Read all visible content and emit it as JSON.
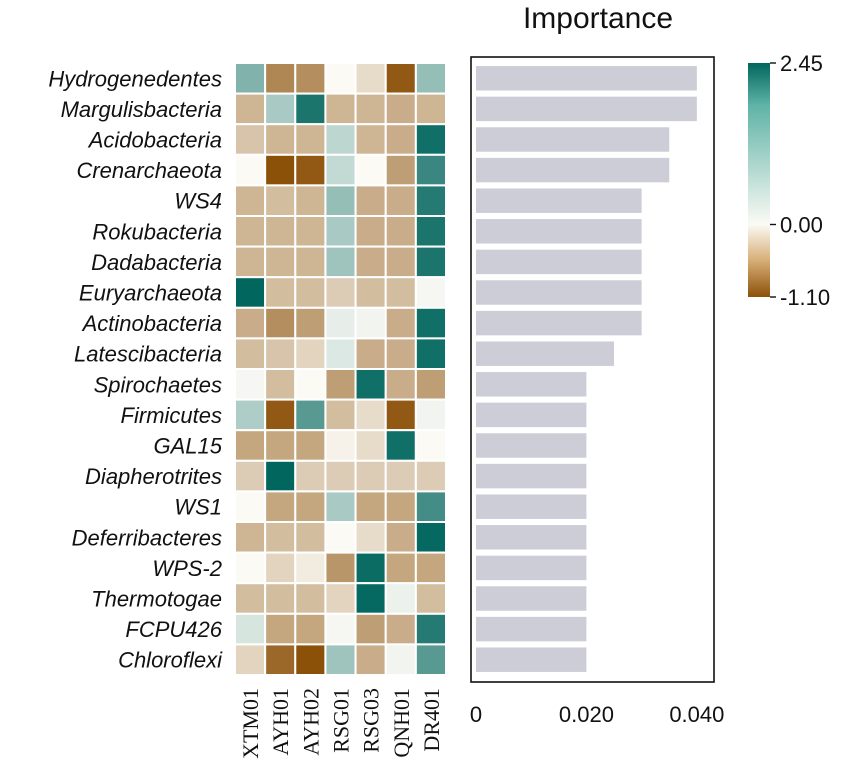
{
  "chart_data": [
    {
      "type": "heatmap",
      "rows": [
        "Hydrogenedentes",
        "Margulisbacteria",
        "Acidobacteria",
        "Crenarchaeota",
        "WS4",
        "Rokubacteria",
        "Dadabacteria",
        "Euryarchaeota",
        "Actinobacteria",
        "Latescibacteria",
        "Spirochaetes",
        "Firmicutes",
        "GAL15",
        "Diapherotrites",
        "WS1",
        "Deferribacteres",
        "WPS-2",
        "Thermotogae",
        "FCPU426",
        "Chloroflexi"
      ],
      "columns": [
        "XTM01",
        "AYH01",
        "AYH02",
        "RSG01",
        "RSG03",
        "QNH01",
        "DR401"
      ],
      "values": [
        [
          1.2,
          -0.75,
          -0.7,
          0.0,
          -0.2,
          -1.05,
          1.0
        ],
        [
          -0.45,
          0.8,
          2.2,
          -0.45,
          -0.45,
          -0.5,
          -0.45
        ],
        [
          -0.35,
          -0.45,
          -0.45,
          0.6,
          -0.45,
          -0.5,
          2.3
        ],
        [
          0.0,
          -1.1,
          -1.05,
          0.55,
          0.0,
          -0.6,
          1.9
        ],
        [
          -0.45,
          -0.4,
          -0.45,
          1.0,
          -0.5,
          -0.5,
          2.1
        ],
        [
          -0.45,
          -0.45,
          -0.45,
          0.8,
          -0.5,
          -0.5,
          2.2
        ],
        [
          -0.45,
          -0.45,
          -0.45,
          0.9,
          -0.5,
          -0.5,
          2.2
        ],
        [
          2.45,
          -0.4,
          -0.4,
          -0.3,
          -0.4,
          -0.4,
          0.05
        ],
        [
          -0.5,
          -0.7,
          -0.6,
          0.2,
          0.1,
          -0.5,
          2.3
        ],
        [
          -0.4,
          -0.35,
          -0.25,
          0.3,
          -0.5,
          -0.5,
          2.3
        ],
        [
          0.05,
          -0.4,
          0.0,
          -0.6,
          2.3,
          -0.5,
          -0.6
        ],
        [
          0.75,
          -1.05,
          1.6,
          -0.4,
          -0.2,
          -1.05,
          0.1
        ],
        [
          -0.55,
          -0.55,
          -0.55,
          -0.05,
          -0.2,
          2.3,
          0.0
        ],
        [
          -0.3,
          2.45,
          -0.3,
          -0.3,
          -0.3,
          -0.3,
          -0.3
        ],
        [
          0.0,
          -0.55,
          -0.55,
          0.8,
          -0.55,
          -0.55,
          1.8
        ],
        [
          -0.45,
          -0.4,
          -0.4,
          0.0,
          -0.2,
          -0.5,
          2.4
        ],
        [
          0.0,
          -0.25,
          -0.1,
          -0.65,
          2.35,
          -0.55,
          -0.55
        ],
        [
          -0.4,
          -0.4,
          -0.4,
          -0.25,
          2.4,
          0.15,
          -0.4
        ],
        [
          0.35,
          -0.55,
          -0.55,
          0.05,
          -0.6,
          -0.5,
          2.1
        ],
        [
          -0.25,
          -0.95,
          -1.1,
          0.9,
          -0.5,
          0.1,
          1.6
        ]
      ],
      "colorbar": {
        "ticks": [
          "2.45",
          "0.00",
          "-1.10"
        ],
        "min": -1.1,
        "max": 2.45,
        "colors": {
          "low": "#8c5109",
          "mid": "#fbfaf5",
          "high": "#01665e"
        }
      }
    },
    {
      "type": "bar",
      "orientation": "horizontal",
      "title": "Importance",
      "categories": [
        "Hydrogenedentes",
        "Margulisbacteria",
        "Acidobacteria",
        "Crenarchaeota",
        "WS4",
        "Rokubacteria",
        "Dadabacteria",
        "Euryarchaeota",
        "Actinobacteria",
        "Latescibacteria",
        "Spirochaetes",
        "Firmicutes",
        "GAL15",
        "Diapherotrites",
        "WS1",
        "Deferribacteres",
        "WPS-2",
        "Thermotogae",
        "FCPU426",
        "Chloroflexi"
      ],
      "values": [
        0.04,
        0.04,
        0.035,
        0.035,
        0.03,
        0.03,
        0.03,
        0.03,
        0.03,
        0.025,
        0.02,
        0.02,
        0.02,
        0.02,
        0.02,
        0.02,
        0.02,
        0.02,
        0.02,
        0.02
      ],
      "xlim": [
        0,
        0.0422
      ],
      "xticks": [
        0,
        0.02,
        0.04
      ],
      "xtick_labels": [
        "0",
        "0.020",
        "0.040"
      ],
      "bar_color": "#cdcdd8"
    }
  ]
}
